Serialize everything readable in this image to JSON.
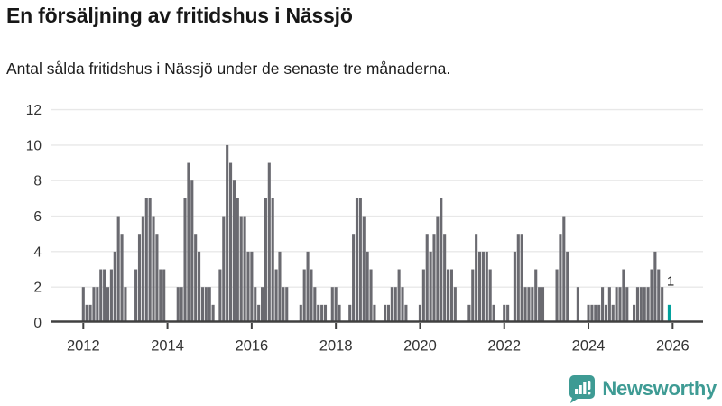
{
  "header": {
    "title": "En försäljning av fritidshus i Nässjö",
    "subtitle": "Antal sålda fritidshus i Nässjö under de senaste tre månaderna."
  },
  "chart_data": {
    "type": "bar",
    "title": "En försäljning av fritidshus i Nässjö",
    "subtitle": "Antal sålda fritidshus i Nässjö under de senaste tre månaderna.",
    "x_unit": "month",
    "x_start": "2012-01",
    "x_end": "2025-12",
    "x_tick_labels": [
      "2012",
      "2014",
      "2016",
      "2018",
      "2020",
      "2022",
      "2024",
      "2026"
    ],
    "x_tick_month_indices": [
      0,
      24,
      48,
      72,
      96,
      120,
      144,
      168
    ],
    "y_ticks": [
      0,
      2,
      4,
      6,
      8,
      10,
      12
    ],
    "ylim": [
      0,
      12
    ],
    "grid": "horizontal",
    "legend": "none",
    "values": [
      2,
      1,
      1,
      2,
      2,
      3,
      3,
      2,
      3,
      4,
      6,
      5,
      2,
      0,
      0,
      3,
      5,
      6,
      7,
      7,
      6,
      5,
      3,
      3,
      0,
      0,
      0,
      2,
      2,
      7,
      9,
      8,
      5,
      4,
      2,
      2,
      2,
      1,
      0,
      3,
      6,
      10,
      9,
      8,
      7,
      6,
      6,
      4,
      4,
      2,
      1,
      2,
      7,
      9,
      7,
      3,
      4,
      2,
      2,
      0,
      0,
      0,
      1,
      3,
      4,
      3,
      2,
      1,
      1,
      1,
      0,
      2,
      2,
      1,
      0,
      0,
      1,
      5,
      7,
      7,
      6,
      4,
      3,
      1,
      0,
      0,
      1,
      1,
      2,
      2,
      3,
      2,
      1,
      0,
      0,
      0,
      1,
      3,
      5,
      4,
      5,
      6,
      7,
      5,
      3,
      3,
      2,
      0,
      0,
      0,
      1,
      3,
      5,
      4,
      4,
      4,
      3,
      1,
      0,
      0,
      1,
      1,
      0,
      4,
      5,
      5,
      2,
      2,
      2,
      3,
      2,
      2,
      0,
      0,
      0,
      3,
      5,
      6,
      4,
      0,
      0,
      2,
      0,
      0,
      1,
      1,
      1,
      1,
      2,
      1,
      2,
      1,
      2,
      2,
      3,
      2,
      0,
      1,
      2,
      2,
      2,
      2,
      3,
      4,
      3,
      2,
      0,
      1
    ],
    "annotation": {
      "label": "1",
      "value": 1,
      "month_index": 167,
      "description": "latest three-month value, highlighted bar"
    },
    "colors": {
      "bar": "#6A6A70",
      "highlight": "#00A09C",
      "grid": "#E8E8E8",
      "axis": "#404040",
      "tick_label": "#333333",
      "annotation_label": "#1A1A1A"
    }
  },
  "logo": {
    "text": "Newsworthy",
    "color": "#3E9B94",
    "icon": "newsworthy-bubble-chart-icon"
  }
}
